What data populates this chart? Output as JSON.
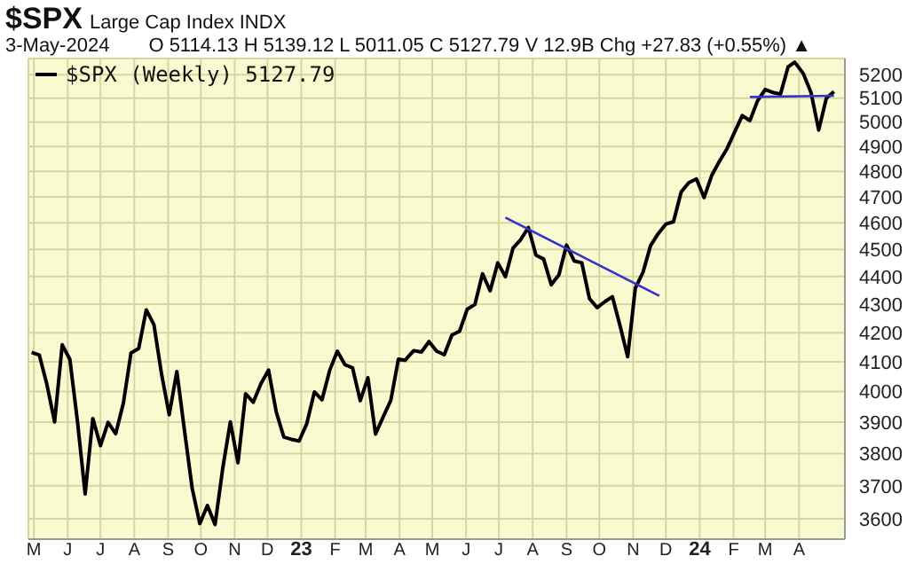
{
  "chart_data": {
    "type": "line",
    "title": "$SPX",
    "subtitle": "Large Cap Index INDX",
    "annotations": [
      "3-May-2024",
      "O 5114.13 H 5139.12 L 5011.05 C 5127.79 V 12.9B Chg +27.83 (+0.55%) ▲"
    ],
    "x": [
      "2022-04-29",
      "2022-05-06",
      "2022-05-13",
      "2022-05-20",
      "2022-05-27",
      "2022-06-03",
      "2022-06-10",
      "2022-06-17",
      "2022-06-24",
      "2022-07-01",
      "2022-07-08",
      "2022-07-15",
      "2022-07-22",
      "2022-07-29",
      "2022-08-05",
      "2022-08-12",
      "2022-08-19",
      "2022-08-26",
      "2022-09-02",
      "2022-09-09",
      "2022-09-16",
      "2022-09-23",
      "2022-09-30",
      "2022-10-07",
      "2022-10-14",
      "2022-10-21",
      "2022-10-28",
      "2022-11-04",
      "2022-11-11",
      "2022-11-18",
      "2022-11-25",
      "2022-12-02",
      "2022-12-09",
      "2022-12-16",
      "2022-12-23",
      "2022-12-30",
      "2023-01-06",
      "2023-01-13",
      "2023-01-20",
      "2023-01-27",
      "2023-02-03",
      "2023-02-10",
      "2023-02-17",
      "2023-02-24",
      "2023-03-03",
      "2023-03-10",
      "2023-03-17",
      "2023-03-24",
      "2023-03-31",
      "2023-04-06",
      "2023-04-14",
      "2023-04-21",
      "2023-04-28",
      "2023-05-05",
      "2023-05-12",
      "2023-05-19",
      "2023-05-26",
      "2023-06-02",
      "2023-06-09",
      "2023-06-16",
      "2023-06-23",
      "2023-06-30",
      "2023-07-07",
      "2023-07-14",
      "2023-07-21",
      "2023-07-28",
      "2023-08-04",
      "2023-08-11",
      "2023-08-18",
      "2023-08-25",
      "2023-09-01",
      "2023-09-08",
      "2023-09-15",
      "2023-09-22",
      "2023-09-29",
      "2023-10-06",
      "2023-10-13",
      "2023-10-20",
      "2023-10-27",
      "2023-11-03",
      "2023-11-10",
      "2023-11-17",
      "2023-11-24",
      "2023-12-01",
      "2023-12-08",
      "2023-12-15",
      "2023-12-22",
      "2023-12-29",
      "2024-01-05",
      "2024-01-12",
      "2024-01-19",
      "2024-01-26",
      "2024-02-02",
      "2024-02-09",
      "2024-02-16",
      "2024-02-23",
      "2024-03-01",
      "2024-03-08",
      "2024-03-15",
      "2024-03-22",
      "2024-03-28",
      "2024-04-05",
      "2024-04-12",
      "2024-04-19",
      "2024-04-26",
      "2024-05-03"
    ],
    "series": [
      {
        "name": "$SPX (Weekly) 5127.79",
        "color": "#000000",
        "values": [
          4132,
          4123,
          4023,
          3901,
          4158,
          4108,
          3901,
          3675,
          3912,
          3825,
          3899,
          3863,
          3962,
          4130,
          4145,
          4280,
          4228,
          4058,
          3924,
          4067,
          3873,
          3693,
          3586,
          3640,
          3583,
          3753,
          3901,
          3771,
          3993,
          3965,
          4026,
          4072,
          3934,
          3852,
          3845,
          3840,
          3895,
          3999,
          3973,
          4071,
          4136,
          4090,
          4079,
          3970,
          4046,
          3862,
          3917,
          3971,
          4109,
          4105,
          4138,
          4133,
          4169,
          4136,
          4124,
          4192,
          4205,
          4282,
          4299,
          4410,
          4348,
          4450,
          4399,
          4505,
          4536,
          4582,
          4478,
          4464,
          4370,
          4406,
          4516,
          4457,
          4450,
          4320,
          4288,
          4309,
          4327,
          4224,
          4117,
          4358,
          4415,
          4514,
          4559,
          4595,
          4604,
          4719,
          4755,
          4770,
          4697,
          4784,
          4840,
          4891,
          4959,
          5027,
          5006,
          5089,
          5137,
          5124,
          5117,
          5234,
          5254,
          5204,
          5123,
          4967,
          5100,
          5128
        ]
      },
      {
        "type": "line",
        "color": "#3333cc",
        "x": [
          "2023-07-07",
          "2023-11-25"
        ],
        "values": [
          4620,
          4330
        ]
      },
      {
        "type": "line",
        "color": "#3333cc",
        "x": [
          "2024-02-16",
          "2024-05-03"
        ],
        "values": [
          5105,
          5110
        ]
      }
    ],
    "xlim": [
      "2022-04-26",
      "2024-05-13"
    ],
    "xticks": [
      {
        "value": "2022-05-01",
        "label": "M"
      },
      {
        "value": "2022-06-01",
        "label": "J"
      },
      {
        "value": "2022-07-01",
        "label": "J"
      },
      {
        "value": "2022-08-01",
        "label": "A"
      },
      {
        "value": "2022-09-01",
        "label": "S"
      },
      {
        "value": "2022-10-01",
        "label": "O"
      },
      {
        "value": "2022-11-01",
        "label": "N"
      },
      {
        "value": "2022-12-01",
        "label": "D"
      },
      {
        "value": "2023-01-01",
        "label": "23"
      },
      {
        "value": "2023-02-01",
        "label": "F"
      },
      {
        "value": "2023-03-01",
        "label": "M"
      },
      {
        "value": "2023-04-01",
        "label": "A"
      },
      {
        "value": "2023-05-01",
        "label": "M"
      },
      {
        "value": "2023-06-01",
        "label": "J"
      },
      {
        "value": "2023-07-01",
        "label": "J"
      },
      {
        "value": "2023-08-01",
        "label": "A"
      },
      {
        "value": "2023-09-01",
        "label": "S"
      },
      {
        "value": "2023-10-01",
        "label": "O"
      },
      {
        "value": "2023-11-01",
        "label": "N"
      },
      {
        "value": "2023-12-01",
        "label": "D"
      },
      {
        "value": "2024-01-01",
        "label": "24"
      },
      {
        "value": "2024-02-01",
        "label": "F"
      },
      {
        "value": "2024-03-01",
        "label": "M"
      },
      {
        "value": "2024-04-01",
        "label": "A"
      }
    ],
    "ylim": [
      3540,
      5270
    ],
    "yticks": [
      3600,
      3700,
      3800,
      3900,
      4000,
      4100,
      4200,
      4300,
      4400,
      4500,
      4600,
      4700,
      4800,
      4900,
      5000,
      5100,
      5200
    ],
    "log": "y",
    "grid": true,
    "legend": "top left"
  }
}
